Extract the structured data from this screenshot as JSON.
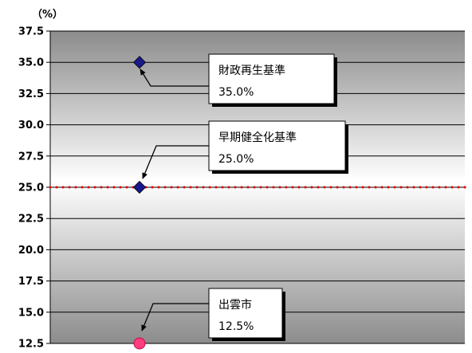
{
  "chart_data": {
    "type": "scatter",
    "y_unit_label": "（%）",
    "ylim": [
      12.5,
      37.5
    ],
    "y_ticks": [
      "37.5",
      "35.0",
      "32.5",
      "30.0",
      "27.5",
      "25.0",
      "22.5",
      "20.0",
      "17.5",
      "15.0",
      "12.5"
    ],
    "grid": true,
    "reference_line": {
      "y": 25.0,
      "style": "dotted",
      "color": "#e00000"
    },
    "points": [
      {
        "y": 35.0,
        "marker": "diamond",
        "color": "#1a1a8c",
        "callout": {
          "title": "財政再生基準",
          "value": "35.0%"
        }
      },
      {
        "y": 25.0,
        "marker": "diamond",
        "color": "#1a1a8c",
        "callout": {
          "title": "早期健全化基準",
          "value": "25.0%"
        }
      },
      {
        "y": 12.5,
        "marker": "circle",
        "color": "#ff3d7f",
        "callout": {
          "title": "出雲市",
          "value": "12.5%"
        }
      }
    ],
    "colors": {
      "plot_gradient_edge": "#8c8c8c",
      "plot_gradient_center": "#ffffff",
      "gridline": "#000000",
      "callout_fill": "#ffffff",
      "callout_border": "#000000"
    }
  }
}
